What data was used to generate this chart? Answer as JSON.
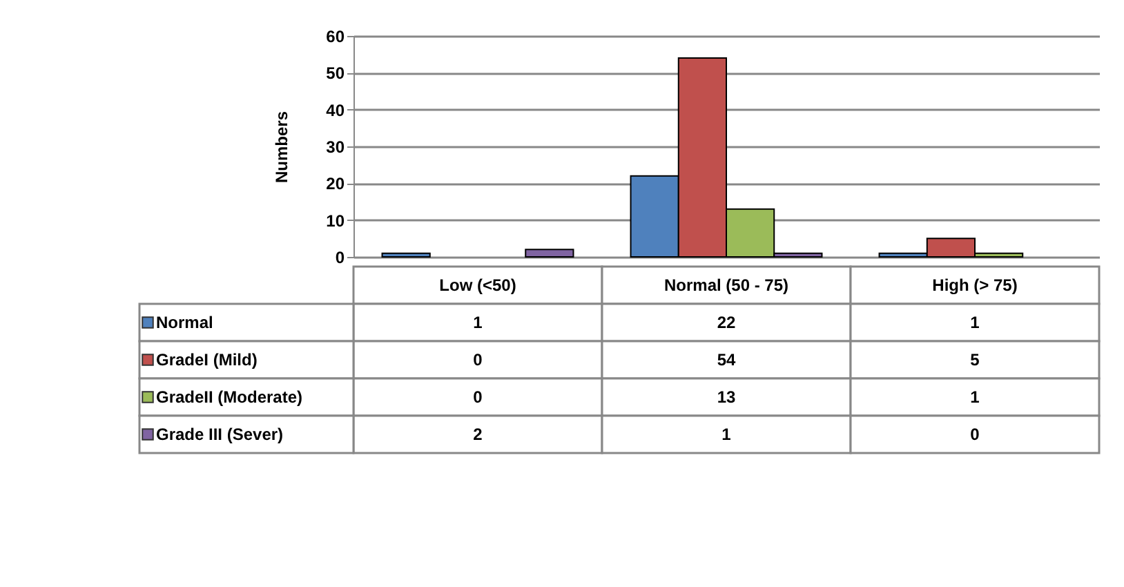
{
  "chart_data": {
    "type": "bar",
    "ylabel": "Numbers",
    "categories": [
      "Low (<50)",
      "Normal (50 - 75)",
      "High (> 75)"
    ],
    "series": [
      {
        "name": "Normal",
        "color": "#4f81bd",
        "values": [
          1,
          22,
          1
        ]
      },
      {
        "name": "GradeI  (Mild)",
        "color": "#c0504d",
        "values": [
          0,
          54,
          5
        ]
      },
      {
        "name": "GradeII (Moderate)",
        "color": "#9bbb59",
        "values": [
          0,
          13,
          1
        ]
      },
      {
        "name": "Grade III (Sever)",
        "color": "#8064a2",
        "values": [
          2,
          1,
          0
        ]
      }
    ],
    "ylim": [
      0,
      60
    ],
    "yticks": [
      0,
      10,
      20,
      30,
      40,
      50,
      60
    ],
    "grid": "y",
    "legend": "bottom",
    "data_labels": true
  }
}
